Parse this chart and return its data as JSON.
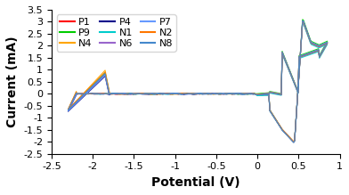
{
  "title": "",
  "xlabel": "Potential (V)",
  "ylabel": "Current (mA)",
  "xlim": [
    -2.5,
    1.0
  ],
  "ylim": [
    -2.5,
    3.5
  ],
  "xticks": [
    -2.5,
    -2.0,
    -1.5,
    -1.0,
    -0.5,
    0.0,
    0.5,
    1.0
  ],
  "yticks": [
    -2.5,
    -2.0,
    -1.5,
    -1.0,
    -0.5,
    0.0,
    0.5,
    1.0,
    1.5,
    2.0,
    2.5,
    3.0,
    3.5
  ],
  "series": [
    {
      "label": "P1",
      "color": "#FF0000"
    },
    {
      "label": "P9",
      "color": "#00CC00"
    },
    {
      "label": "N4",
      "color": "#FFA500"
    },
    {
      "label": "P4",
      "color": "#00008B"
    },
    {
      "label": "N1",
      "color": "#00CCCC"
    },
    {
      "label": "N6",
      "color": "#9966CC"
    },
    {
      "label": "P7",
      "color": "#6699FF"
    },
    {
      "label": "N2",
      "color": "#FF7700"
    },
    {
      "label": "N8",
      "color": "#4488CC"
    }
  ],
  "background_color": "#FFFFFF",
  "legend_fontsize": 8,
  "axis_label_fontsize": 10,
  "tick_fontsize": 8
}
